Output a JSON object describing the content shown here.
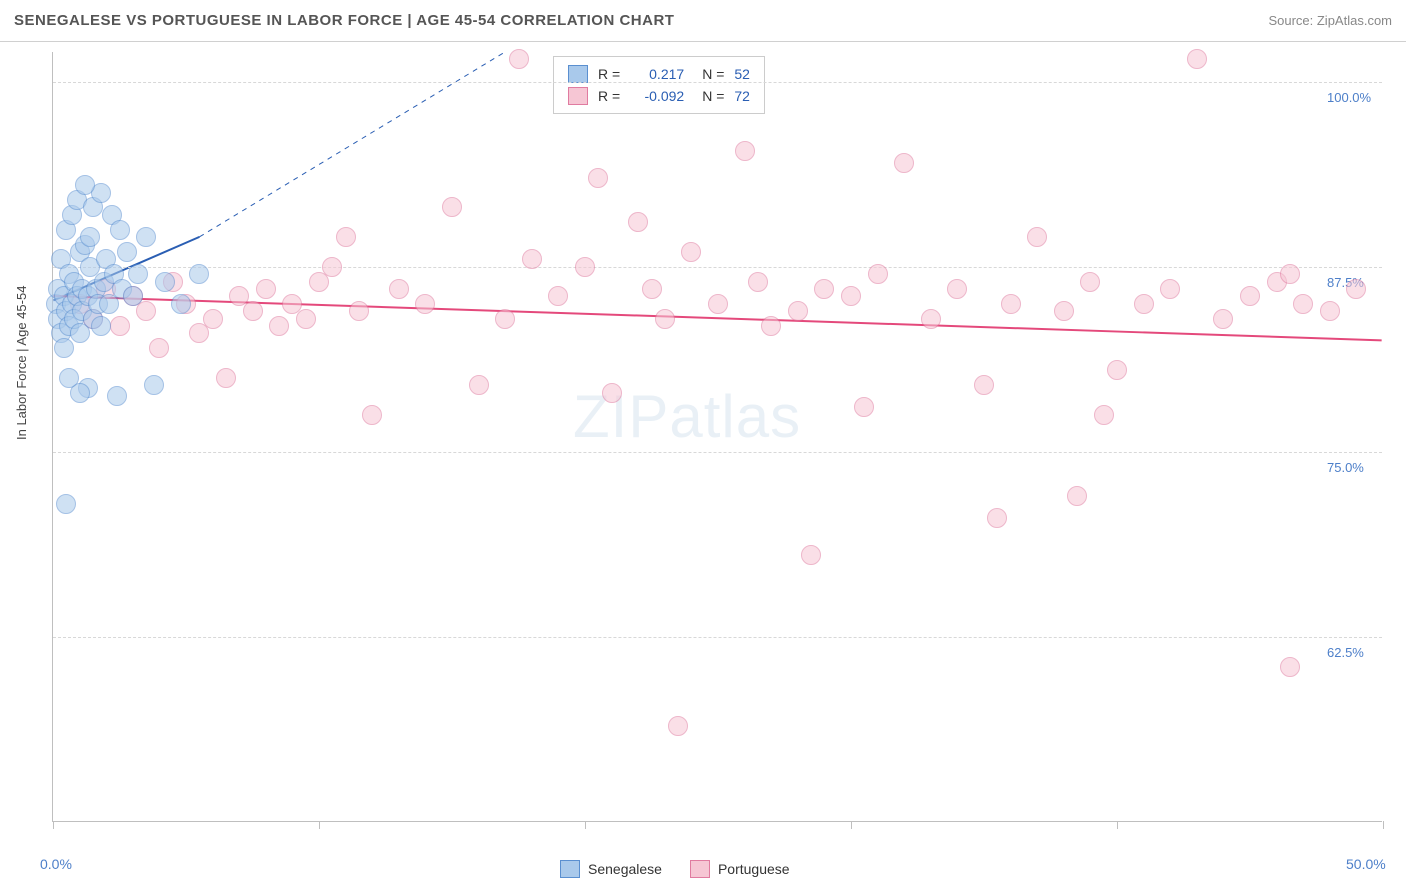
{
  "header": {
    "title": "SENEGALESE VS PORTUGUESE IN LABOR FORCE | AGE 45-54 CORRELATION CHART",
    "source": "Source: ZipAtlas.com"
  },
  "watermark": "ZIPatlas",
  "chart": {
    "type": "scatter",
    "ylabel": "In Labor Force | Age 45-54",
    "xlim": [
      0,
      50
    ],
    "ylim": [
      50,
      102
    ],
    "xtick_positions": [
      0,
      10,
      20,
      30,
      40,
      50
    ],
    "x_axis_labels": {
      "min": "0.0%",
      "max": "50.0%"
    },
    "y_gridlines": [
      62.5,
      75.0,
      87.5,
      100.0
    ],
    "y_labels": [
      "62.5%",
      "75.0%",
      "87.5%",
      "100.0%"
    ],
    "background_color": "#ffffff",
    "grid_color": "#d8d8d8",
    "axis_color": "#bfbfbf",
    "axis_label_color": "#4d7fc9",
    "point_radius": 10,
    "point_opacity": 0.55,
    "series": [
      {
        "name": "Senegalese",
        "fill": "#a9c9eb",
        "stroke": "#5a8fd0",
        "R": "0.217",
        "N": "52",
        "trend": {
          "x1": 0,
          "y1": 85.2,
          "x2": 5.5,
          "y2": 89.5,
          "extend_to_x": 17,
          "extend_to_y": 102,
          "color": "#2a5eb3",
          "width": 2
        },
        "points": [
          {
            "x": 0.1,
            "y": 85.0
          },
          {
            "x": 0.2,
            "y": 84.0
          },
          {
            "x": 0.2,
            "y": 86.0
          },
          {
            "x": 0.3,
            "y": 83.0
          },
          {
            "x": 0.3,
            "y": 88.0
          },
          {
            "x": 0.4,
            "y": 82.0
          },
          {
            "x": 0.4,
            "y": 85.5
          },
          {
            "x": 0.5,
            "y": 84.5
          },
          {
            "x": 0.5,
            "y": 90.0
          },
          {
            "x": 0.6,
            "y": 83.5
          },
          {
            "x": 0.6,
            "y": 87.0
          },
          {
            "x": 0.7,
            "y": 85.0
          },
          {
            "x": 0.7,
            "y": 91.0
          },
          {
            "x": 0.8,
            "y": 84.0
          },
          {
            "x": 0.8,
            "y": 86.5
          },
          {
            "x": 0.9,
            "y": 85.5
          },
          {
            "x": 0.9,
            "y": 92.0
          },
          {
            "x": 1.0,
            "y": 83.0
          },
          {
            "x": 1.0,
            "y": 88.5
          },
          {
            "x": 1.1,
            "y": 86.0
          },
          {
            "x": 1.1,
            "y": 84.5
          },
          {
            "x": 1.2,
            "y": 89.0
          },
          {
            "x": 1.3,
            "y": 85.5
          },
          {
            "x": 1.3,
            "y": 79.3
          },
          {
            "x": 1.4,
            "y": 87.5
          },
          {
            "x": 1.5,
            "y": 84.0
          },
          {
            "x": 1.5,
            "y": 91.5
          },
          {
            "x": 1.6,
            "y": 86.0
          },
          {
            "x": 1.7,
            "y": 85.0
          },
          {
            "x": 1.8,
            "y": 92.5
          },
          {
            "x": 1.8,
            "y": 83.5
          },
          {
            "x": 1.9,
            "y": 86.5
          },
          {
            "x": 2.0,
            "y": 88.0
          },
          {
            "x": 2.1,
            "y": 85.0
          },
          {
            "x": 2.2,
            "y": 91.0
          },
          {
            "x": 2.3,
            "y": 87.0
          },
          {
            "x": 2.4,
            "y": 78.8
          },
          {
            "x": 2.5,
            "y": 90.0
          },
          {
            "x": 2.6,
            "y": 86.0
          },
          {
            "x": 2.8,
            "y": 88.5
          },
          {
            "x": 3.0,
            "y": 85.5
          },
          {
            "x": 3.2,
            "y": 87.0
          },
          {
            "x": 3.5,
            "y": 89.5
          },
          {
            "x": 3.8,
            "y": 79.5
          },
          {
            "x": 4.2,
            "y": 86.5
          },
          {
            "x": 4.8,
            "y": 85.0
          },
          {
            "x": 5.5,
            "y": 87.0
          },
          {
            "x": 0.5,
            "y": 71.5
          },
          {
            "x": 1.0,
            "y": 79.0
          },
          {
            "x": 1.2,
            "y": 93.0
          },
          {
            "x": 1.4,
            "y": 89.5
          },
          {
            "x": 0.6,
            "y": 80.0
          }
        ]
      },
      {
        "name": "Portuguese",
        "fill": "#f6c6d4",
        "stroke": "#e07ba0",
        "R": "-0.092",
        "N": "72",
        "trend": {
          "x1": 0,
          "y1": 85.5,
          "x2": 50,
          "y2": 82.5,
          "color": "#e4497b",
          "width": 2
        },
        "points": [
          {
            "x": 1.0,
            "y": 85.0
          },
          {
            "x": 1.5,
            "y": 84.0
          },
          {
            "x": 2.0,
            "y": 86.0
          },
          {
            "x": 2.5,
            "y": 83.5
          },
          {
            "x": 3.0,
            "y": 85.5
          },
          {
            "x": 3.5,
            "y": 84.5
          },
          {
            "x": 4.0,
            "y": 82.0
          },
          {
            "x": 4.5,
            "y": 86.5
          },
          {
            "x": 5.0,
            "y": 85.0
          },
          {
            "x": 5.5,
            "y": 83.0
          },
          {
            "x": 6.0,
            "y": 84.0
          },
          {
            "x": 6.5,
            "y": 80.0
          },
          {
            "x": 7.0,
            "y": 85.5
          },
          {
            "x": 7.5,
            "y": 84.5
          },
          {
            "x": 8.0,
            "y": 86.0
          },
          {
            "x": 8.5,
            "y": 83.5
          },
          {
            "x": 9.0,
            "y": 85.0
          },
          {
            "x": 9.5,
            "y": 84.0
          },
          {
            "x": 10.0,
            "y": 86.5
          },
          {
            "x": 10.5,
            "y": 87.5
          },
          {
            "x": 11.0,
            "y": 89.5
          },
          {
            "x": 11.5,
            "y": 84.5
          },
          {
            "x": 12.0,
            "y": 77.5
          },
          {
            "x": 13.0,
            "y": 86.0
          },
          {
            "x": 14.0,
            "y": 85.0
          },
          {
            "x": 15.0,
            "y": 91.5
          },
          {
            "x": 16.0,
            "y": 79.5
          },
          {
            "x": 17.0,
            "y": 84.0
          },
          {
            "x": 17.5,
            "y": 101.5
          },
          {
            "x": 18.0,
            "y": 88.0
          },
          {
            "x": 19.0,
            "y": 85.5
          },
          {
            "x": 20.0,
            "y": 87.5
          },
          {
            "x": 20.5,
            "y": 93.5
          },
          {
            "x": 21.0,
            "y": 79.0
          },
          {
            "x": 22.0,
            "y": 90.5
          },
          {
            "x": 22.5,
            "y": 86.0
          },
          {
            "x": 23.0,
            "y": 84.0
          },
          {
            "x": 23.5,
            "y": 56.5
          },
          {
            "x": 24.0,
            "y": 88.5
          },
          {
            "x": 25.0,
            "y": 85.0
          },
          {
            "x": 26.0,
            "y": 95.3
          },
          {
            "x": 26.5,
            "y": 86.5
          },
          {
            "x": 27.0,
            "y": 83.5
          },
          {
            "x": 28.0,
            "y": 84.5
          },
          {
            "x": 28.5,
            "y": 68.0
          },
          {
            "x": 29.0,
            "y": 86.0
          },
          {
            "x": 30.0,
            "y": 85.5
          },
          {
            "x": 30.5,
            "y": 78.0
          },
          {
            "x": 31.0,
            "y": 87.0
          },
          {
            "x": 32.0,
            "y": 94.5
          },
          {
            "x": 33.0,
            "y": 84.0
          },
          {
            "x": 34.0,
            "y": 86.0
          },
          {
            "x": 35.0,
            "y": 79.5
          },
          {
            "x": 35.5,
            "y": 70.5
          },
          {
            "x": 36.0,
            "y": 85.0
          },
          {
            "x": 37.0,
            "y": 89.5
          },
          {
            "x": 38.0,
            "y": 84.5
          },
          {
            "x": 38.5,
            "y": 72.0
          },
          {
            "x": 39.0,
            "y": 86.5
          },
          {
            "x": 39.5,
            "y": 77.5
          },
          {
            "x": 40.0,
            "y": 80.5
          },
          {
            "x": 41.0,
            "y": 85.0
          },
          {
            "x": 42.0,
            "y": 86.0
          },
          {
            "x": 43.0,
            "y": 101.5
          },
          {
            "x": 44.0,
            "y": 84.0
          },
          {
            "x": 45.0,
            "y": 85.5
          },
          {
            "x": 46.0,
            "y": 86.5
          },
          {
            "x": 46.5,
            "y": 60.5
          },
          {
            "x": 46.5,
            "y": 87.0
          },
          {
            "x": 47.0,
            "y": 85.0
          },
          {
            "x": 48.0,
            "y": 84.5
          },
          {
            "x": 49.0,
            "y": 86.0
          }
        ]
      }
    ]
  },
  "legend": {
    "r_label": "R =",
    "n_label": "N ="
  },
  "bottom_legend": {
    "items": [
      "Senegalese",
      "Portuguese"
    ]
  }
}
